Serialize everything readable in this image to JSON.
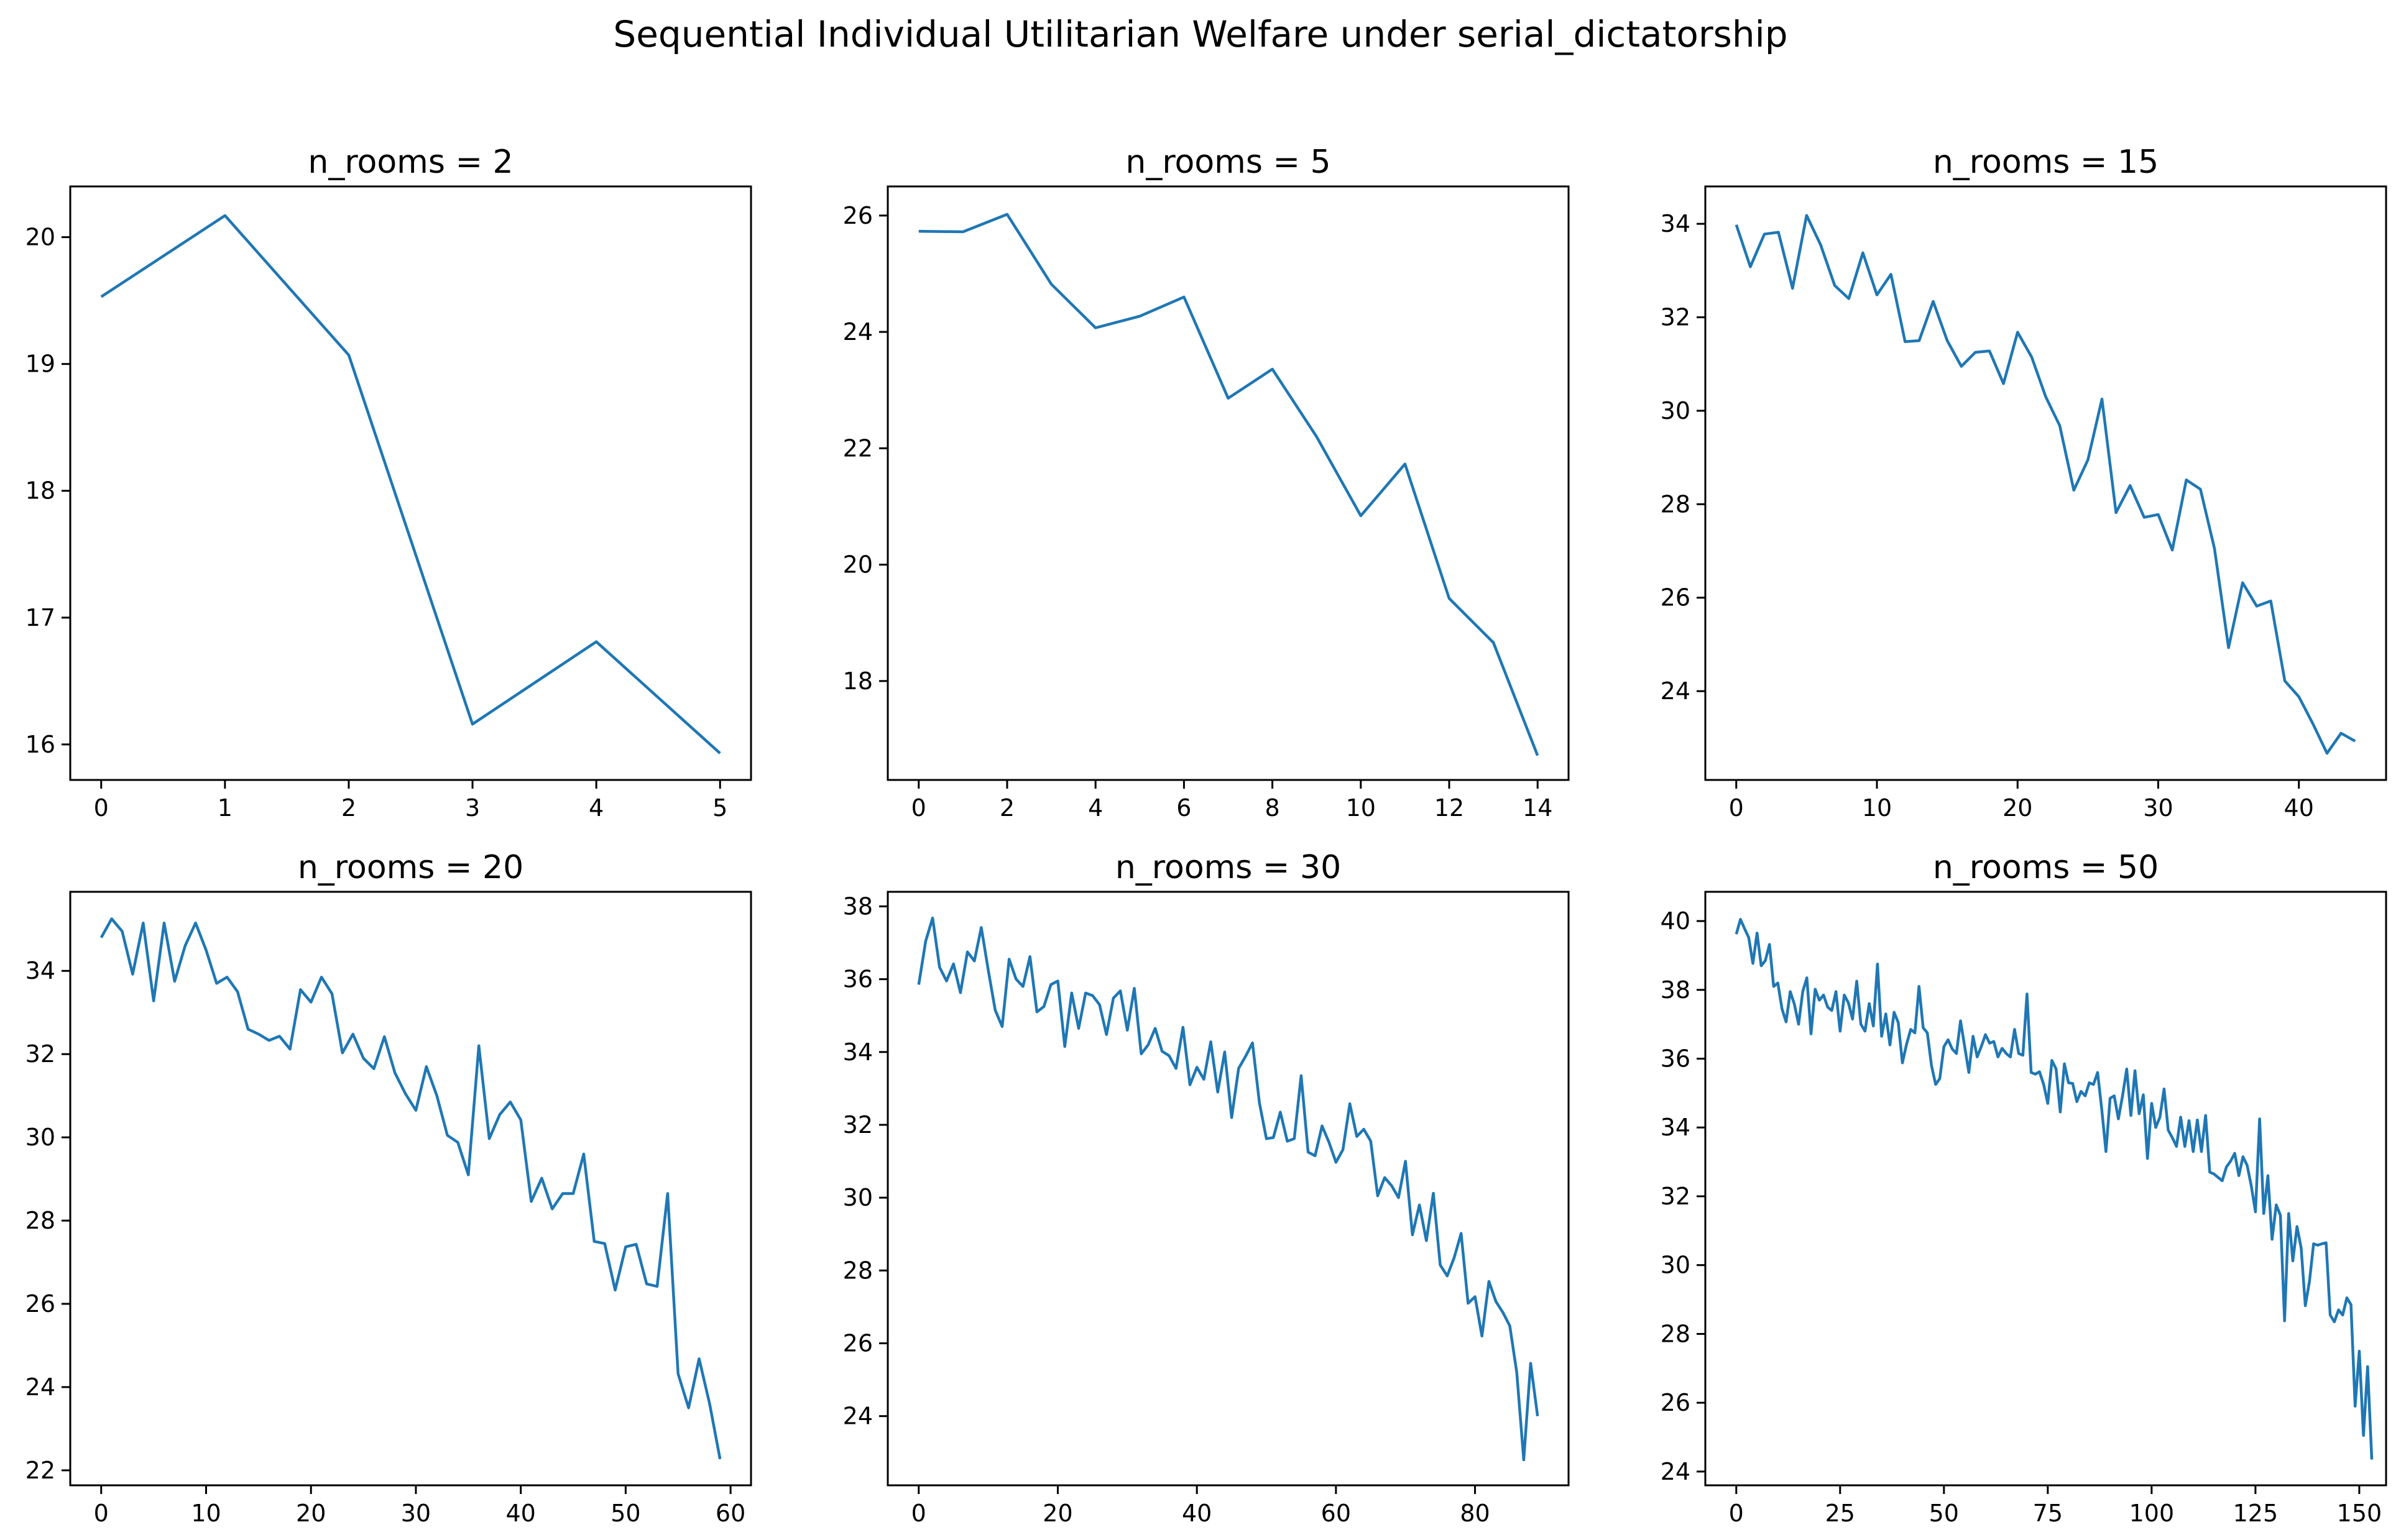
{
  "figure": {
    "title": "Sequential Individual Utilitarian Welfare under serial_dictatorship"
  },
  "colors": {
    "line": "#1f77b4"
  },
  "chart_data": [
    {
      "type": "line",
      "title": "n_rooms = 2",
      "xlabel": "",
      "ylabel": "",
      "xlim": [
        -0.25,
        5.25
      ],
      "ylim": [
        15.72,
        20.4
      ],
      "xticks": [
        0,
        1,
        2,
        3,
        4,
        5
      ],
      "yticks": [
        16,
        17,
        18,
        19,
        20
      ],
      "grid": false,
      "y": [
        19.53,
        20.17,
        19.07,
        16.16,
        16.81,
        15.93
      ]
    },
    {
      "type": "line",
      "title": "n_rooms = 5",
      "xlabel": "",
      "ylabel": "",
      "xlim": [
        -0.7,
        14.7
      ],
      "ylim": [
        16.3,
        26.5
      ],
      "xticks": [
        0,
        2,
        4,
        6,
        8,
        10,
        12,
        14
      ],
      "yticks": [
        18,
        20,
        22,
        24,
        26
      ],
      "grid": false,
      "y": [
        25.73,
        25.72,
        26.02,
        24.82,
        24.07,
        24.27,
        24.6,
        22.86,
        23.36,
        22.2,
        20.84,
        21.73,
        19.42,
        18.66,
        16.72
      ]
    },
    {
      "type": "line",
      "title": "n_rooms = 15",
      "xlabel": "",
      "ylabel": "",
      "xlim": [
        -2.2,
        46.2
      ],
      "ylim": [
        22.1,
        34.8
      ],
      "xticks": [
        0,
        10,
        20,
        30,
        40
      ],
      "yticks": [
        24,
        26,
        28,
        30,
        32,
        34
      ],
      "grid": false,
      "y": [
        33.98,
        33.08,
        33.78,
        33.82,
        32.62,
        34.18,
        33.55,
        32.68,
        32.4,
        33.38,
        32.48,
        32.92,
        31.48,
        31.5,
        32.34,
        31.5,
        30.95,
        31.25,
        31.28,
        30.58,
        31.68,
        31.15,
        30.3,
        29.68,
        28.3,
        28.95,
        30.25,
        27.82,
        28.4,
        27.72,
        27.78,
        27.02,
        28.52,
        28.32,
        27.05,
        24.93,
        26.32,
        25.82,
        25.93,
        24.22,
        23.88,
        23.3,
        22.67,
        23.1,
        22.93
      ]
    },
    {
      "type": "line",
      "title": "n_rooms = 20",
      "xlabel": "",
      "ylabel": "",
      "xlim": [
        -2.95,
        61.95
      ],
      "ylim": [
        21.64,
        35.9
      ],
      "xticks": [
        0,
        10,
        20,
        30,
        40,
        50,
        60
      ],
      "yticks": [
        22,
        24,
        26,
        28,
        30,
        32,
        34
      ],
      "grid": false,
      "y": [
        34.8,
        35.25,
        34.95,
        33.92,
        35.15,
        33.28,
        35.15,
        33.75,
        34.6,
        35.15,
        34.5,
        33.7,
        33.85,
        33.5,
        32.6,
        32.48,
        32.33,
        32.43,
        32.12,
        33.55,
        33.25,
        33.85,
        33.45,
        32.03,
        32.48,
        31.9,
        31.65,
        32.42,
        31.55,
        31.05,
        30.65,
        31.7,
        31.0,
        30.05,
        29.88,
        29.1,
        32.2,
        29.97,
        30.55,
        30.85,
        30.42,
        28.46,
        29.02,
        28.28,
        28.65,
        28.65,
        29.6,
        27.5,
        27.45,
        26.33,
        27.37,
        27.43,
        26.48,
        26.42,
        28.65,
        24.32,
        23.5,
        24.68,
        23.6,
        22.27
      ]
    },
    {
      "type": "line",
      "title": "n_rooms = 30",
      "xlabel": "",
      "ylabel": "",
      "xlim": [
        -4.45,
        93.45
      ],
      "ylim": [
        22.1,
        38.4
      ],
      "xticks": [
        0,
        20,
        40,
        60,
        80
      ],
      "yticks": [
        24,
        26,
        28,
        30,
        32,
        34,
        36,
        38
      ],
      "grid": false,
      "y": [
        35.85,
        37.05,
        37.68,
        36.33,
        35.95,
        36.42,
        35.63,
        36.75,
        36.5,
        37.42,
        36.25,
        35.15,
        34.7,
        36.55,
        36.0,
        35.8,
        36.62,
        35.1,
        35.25,
        35.85,
        35.95,
        34.15,
        35.62,
        34.65,
        35.62,
        35.55,
        35.3,
        34.48,
        35.48,
        35.68,
        34.6,
        35.75,
        33.95,
        34.2,
        34.65,
        34.02,
        33.9,
        33.55,
        34.68,
        33.1,
        33.58,
        33.25,
        34.28,
        32.9,
        34.0,
        32.2,
        33.55,
        33.88,
        34.25,
        32.6,
        31.62,
        31.65,
        32.35,
        31.55,
        31.62,
        33.35,
        31.25,
        31.15,
        31.97,
        31.52,
        30.97,
        31.32,
        32.58,
        31.68,
        31.88,
        31.55,
        30.05,
        30.55,
        30.33,
        30.0,
        31.0,
        28.98,
        29.8,
        28.82,
        30.12,
        28.15,
        27.85,
        28.35,
        29.02,
        27.1,
        27.28,
        26.2,
        27.7,
        27.15,
        26.85,
        26.48,
        25.2,
        22.8,
        25.45,
        24.0
      ]
    },
    {
      "type": "line",
      "title": "n_rooms = 50",
      "xlabel": "",
      "ylabel": "",
      "xlim": [
        -7.45,
        156.45
      ],
      "ylim": [
        23.6,
        40.85
      ],
      "xticks": [
        0,
        25,
        50,
        75,
        100,
        125,
        150
      ],
      "yticks": [
        24,
        26,
        28,
        30,
        32,
        34,
        36,
        38,
        40
      ],
      "grid": false,
      "y": [
        39.62,
        40.05,
        39.78,
        39.52,
        38.77,
        39.65,
        38.7,
        38.85,
        39.32,
        38.1,
        38.2,
        37.45,
        37.07,
        37.95,
        37.58,
        37.0,
        37.95,
        38.35,
        36.72,
        38.02,
        37.7,
        37.85,
        37.5,
        37.4,
        37.95,
        36.8,
        37.85,
        37.62,
        37.15,
        38.25,
        37.0,
        36.8,
        37.6,
        36.95,
        38.75,
        36.65,
        37.3,
        36.4,
        37.35,
        37.05,
        35.88,
        36.42,
        36.85,
        36.75,
        38.1,
        36.9,
        36.75,
        35.8,
        35.25,
        35.42,
        36.35,
        36.55,
        36.28,
        36.15,
        37.1,
        36.35,
        35.6,
        36.65,
        36.05,
        36.35,
        36.7,
        36.45,
        36.5,
        36.05,
        36.3,
        36.15,
        36.05,
        36.85,
        36.15,
        36.1,
        37.88,
        35.6,
        35.55,
        35.62,
        35.25,
        34.7,
        35.95,
        35.7,
        34.45,
        35.85,
        35.3,
        35.28,
        34.75,
        35.05,
        34.92,
        35.3,
        35.25,
        35.6,
        34.52,
        33.3,
        34.85,
        34.92,
        34.25,
        34.92,
        35.7,
        34.35,
        35.65,
        34.4,
        34.95,
        33.1,
        34.7,
        34.0,
        34.3,
        35.12,
        33.92,
        33.7,
        33.45,
        34.3,
        33.45,
        34.2,
        33.3,
        34.22,
        33.3,
        34.35,
        32.7,
        32.65,
        32.55,
        32.45,
        32.85,
        33.02,
        33.25,
        32.6,
        33.15,
        32.9,
        32.3,
        31.55,
        34.25,
        31.5,
        32.6,
        30.75,
        31.75,
        31.45,
        28.38,
        31.5,
        30.12,
        31.12,
        30.5,
        28.82,
        29.52,
        30.62,
        30.58,
        30.62,
        30.65,
        28.55,
        28.35,
        28.7,
        28.55,
        29.05,
        28.85,
        25.9,
        27.5,
        25.05,
        27.05,
        24.35
      ]
    }
  ]
}
